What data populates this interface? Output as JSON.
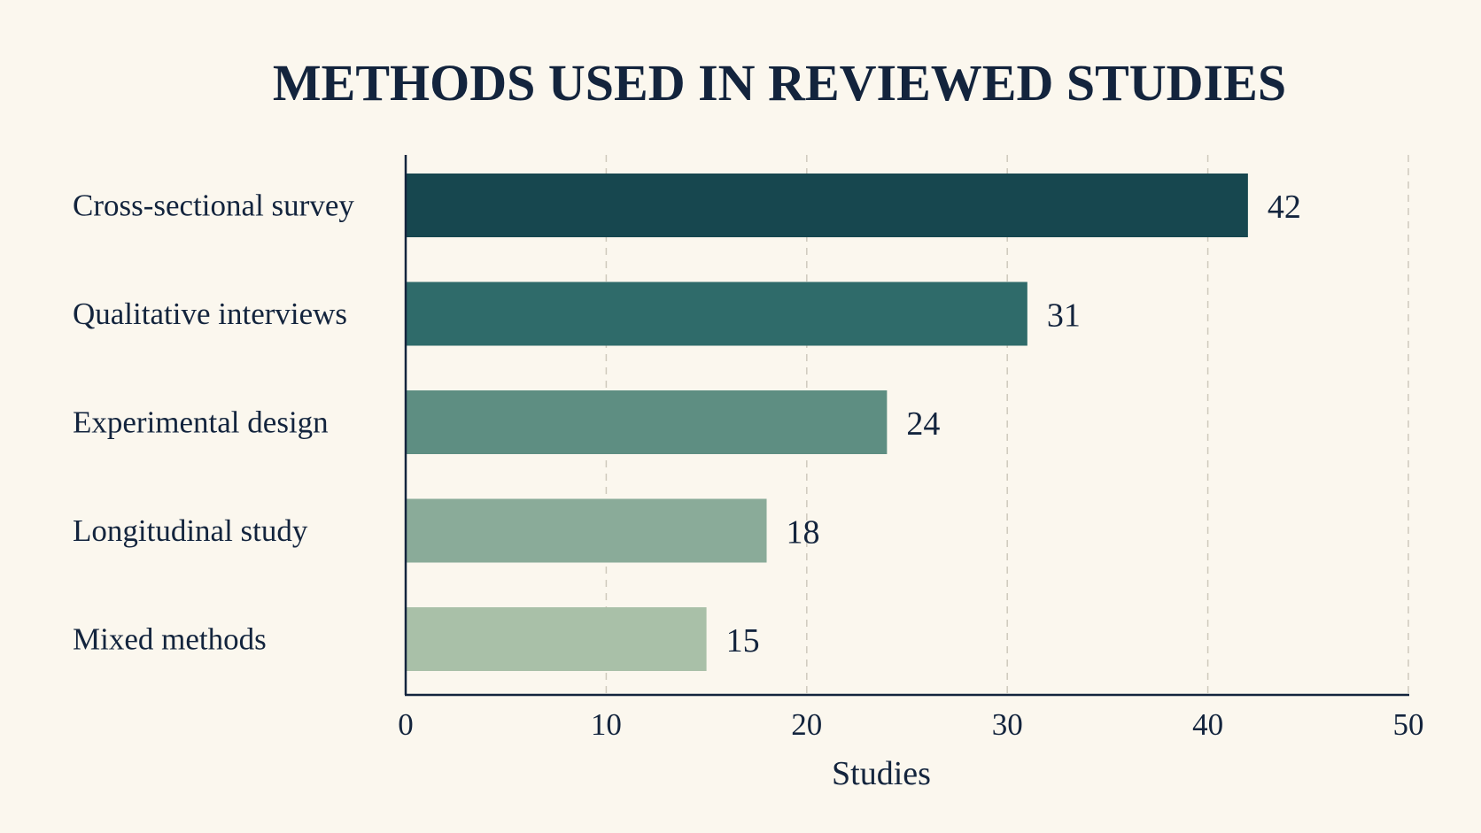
{
  "chart_data": {
    "type": "bar",
    "orientation": "horizontal",
    "title": "METHODS USED IN REVIEWED STUDIES",
    "xlabel": "Studies",
    "ylabel": "",
    "categories": [
      "Cross-sectional survey",
      "Qualitative interviews",
      "Experimental design",
      "Longitudinal study",
      "Mixed methods"
    ],
    "values": [
      42,
      31,
      24,
      18,
      15
    ],
    "xlim": [
      0,
      50
    ],
    "xticks": [
      0,
      10,
      20,
      30,
      40,
      50
    ],
    "grid": true,
    "legend": "none",
    "colors": [
      "#17474f",
      "#2f6b6a",
      "#5e8e82",
      "#8aab99",
      "#a9c0a8"
    ]
  }
}
